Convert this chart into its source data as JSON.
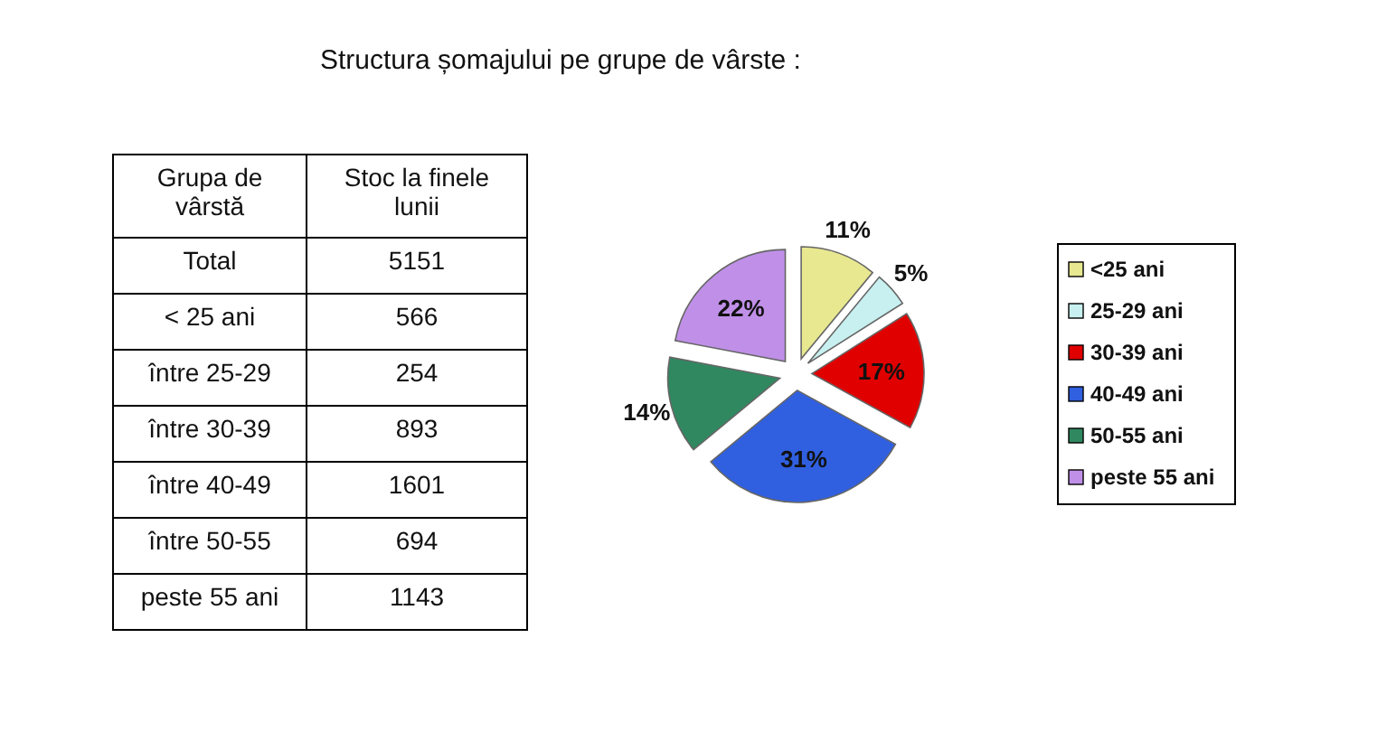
{
  "chart_data": [
    {
      "type": "other",
      "title": "Structura șomajului pe grupe de vârste :",
      "xlabel": "Grupa de vârstă",
      "ylabel": "Stoc la finele lunii",
      "categories": [
        "Total",
        "< 25 ani",
        "între 25-29",
        "între 30-39",
        "între 40-49",
        "între 50-55",
        "peste 55 ani"
      ],
      "values": [
        5151,
        566,
        254,
        893,
        1601,
        694,
        1143
      ],
      "data_labels": true
    },
    {
      "type": "pie",
      "categories": [
        "<25 ani",
        "25-29 ani",
        "30-39 ani",
        "40-49 ani",
        "50-55 ani",
        "peste 55 ani"
      ],
      "values": [
        11,
        5,
        17,
        31,
        14,
        22
      ],
      "colors": [
        "#e8e890",
        "#c8f0f0",
        "#e00000",
        "#3060e0",
        "#308860",
        "#c090e8"
      ],
      "value_labels": [
        "11%",
        "5%",
        "17%",
        "31%",
        "14%",
        "22%"
      ],
      "legend": "right"
    }
  ]
}
